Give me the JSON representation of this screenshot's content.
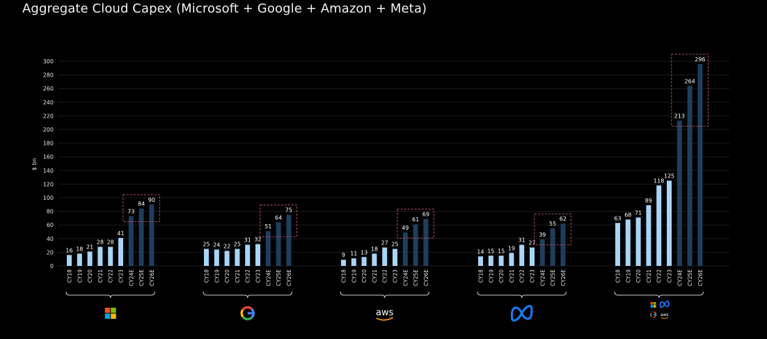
{
  "title": "Aggregate Cloud Capex (Microsoft + Google + Amazon + Meta)",
  "chart_data": {
    "type": "bar",
    "title": "Aggregate Cloud Capex (Microsoft + Google + Amazon + Meta)",
    "ylabel": "$ bn",
    "xlabel": "",
    "ylim": [
      0,
      300
    ],
    "yticks": [
      0,
      20,
      40,
      60,
      80,
      100,
      120,
      140,
      160,
      180,
      200,
      220,
      240,
      260,
      280,
      300
    ],
    "grid": true,
    "categories": [
      "CY18",
      "CY19",
      "CY20",
      "CY21",
      "CY22",
      "CY23",
      "CY24E",
      "CY25E",
      "CY26E"
    ],
    "estimate_categories": [
      "CY24E",
      "CY25E",
      "CY26E"
    ],
    "colors": {
      "actual": "#a8d4f7",
      "estimate": "#1e3e5c",
      "highlight_box": "#b05060",
      "background": "#000000"
    },
    "groups": [
      {
        "company": "Microsoft",
        "logo": "microsoft-logo",
        "values": [
          16,
          18,
          21,
          28,
          28,
          41,
          73,
          84,
          90
        ]
      },
      {
        "company": "Google",
        "logo": "google-logo",
        "values": [
          25,
          24,
          22,
          25,
          31,
          32,
          51,
          64,
          75
        ]
      },
      {
        "company": "Amazon",
        "logo": "aws-logo",
        "logo_text": "aws",
        "values": [
          9,
          11,
          13,
          18,
          27,
          25,
          49,
          61,
          69
        ]
      },
      {
        "company": "Meta",
        "logo": "meta-logo",
        "values": [
          14,
          15,
          15,
          19,
          31,
          27,
          39,
          55,
          62
        ]
      },
      {
        "company": "Aggregate",
        "logo": "combined-logo",
        "logo_text": "aws",
        "values": [
          63,
          68,
          71,
          89,
          118,
          125,
          213,
          264,
          296
        ]
      }
    ]
  }
}
